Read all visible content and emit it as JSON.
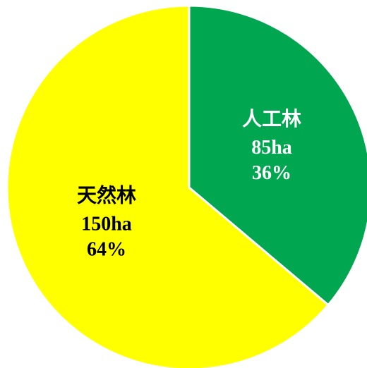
{
  "chart_data": {
    "type": "pie",
    "categories": [
      "人工林",
      "天然林"
    ],
    "values": [
      85,
      150
    ],
    "value_labels": [
      "85ha",
      "150ha"
    ],
    "percents": [
      36,
      64
    ],
    "percent_labels": [
      "36%",
      "64%"
    ],
    "colors": [
      "#00a650",
      "#ffff00"
    ],
    "label_colors": [
      "#ffffff",
      "#000000"
    ]
  }
}
